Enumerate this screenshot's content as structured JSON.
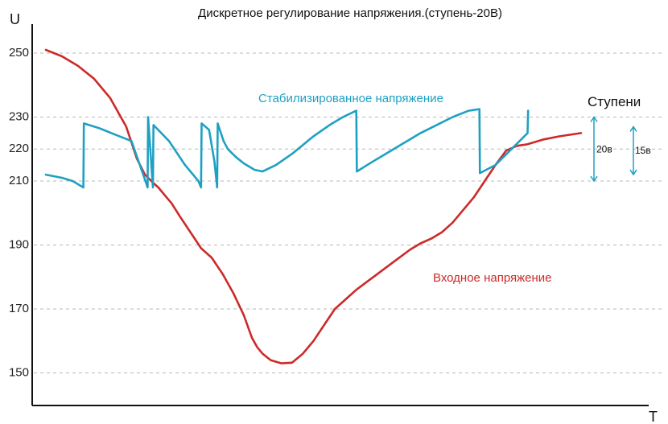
{
  "chart_data": {
    "type": "line",
    "title": "Дискретное регулирование напряжения.(ступень-20В)",
    "ylabel": "U",
    "xlabel": "T",
    "yticks": [
      150,
      170,
      190,
      210,
      220,
      230,
      250
    ],
    "ylim": [
      140,
      260
    ],
    "xlim": [
      0,
      100
    ],
    "grid": true,
    "colors": {
      "input": "#cc2a2a",
      "stabilized": "#1fa0c3",
      "axis": "#111111",
      "grid": "#b8b8b8"
    },
    "series": [
      {
        "name": "Входное напряжение",
        "key": "input",
        "x": [
          0,
          3,
          6,
          9,
          12,
          15,
          17,
          18.5,
          20,
          21,
          22,
          23.5,
          25,
          27,
          29,
          31,
          33,
          35,
          37,
          38.5,
          39.5,
          40.5,
          42,
          44,
          46,
          48,
          50,
          52,
          54,
          56,
          58,
          60,
          62,
          64,
          66,
          68,
          70,
          72,
          74,
          76,
          78,
          80,
          82,
          84,
          86,
          88,
          90,
          93,
          96,
          100
        ],
        "y": [
          251,
          249,
          246,
          242,
          236,
          227,
          217,
          212,
          209.5,
          208,
          206,
          203,
          199,
          194,
          189,
          186,
          181,
          175,
          168,
          161,
          158,
          156,
          154,
          153,
          153.2,
          156,
          160,
          165,
          170,
          173,
          176,
          178.5,
          181,
          183.5,
          186,
          188.5,
          190.5,
          192,
          194,
          197,
          201,
          205,
          210,
          215,
          219.5,
          221,
          221.5,
          223,
          224,
          225
        ]
      },
      {
        "name": "Стабилизированное напряжение",
        "key": "stabilized",
        "x": [
          0,
          3,
          5,
          7,
          7.1,
          10,
          13,
          16,
          18.5,
          19,
          19.1,
          20,
          20.1,
          23,
          26,
          28.5,
          29,
          29.1,
          30.5,
          31.5,
          32,
          32.1,
          32.6,
          33.2,
          34,
          35.5,
          37,
          39,
          40.5,
          43,
          46,
          50,
          53,
          55.5,
          58,
          58.1,
          61,
          64,
          67,
          70,
          73,
          76,
          79,
          81,
          81.1,
          84,
          87,
          90,
          90.1
        ],
        "y": [
          212,
          211,
          210,
          208,
          228,
          226.5,
          224.5,
          222.5,
          210.5,
          208,
          230,
          208,
          227.5,
          222.5,
          215,
          210,
          208,
          228,
          226,
          216,
          208,
          228,
          225.5,
          222.5,
          220,
          217.5,
          215.5,
          213.5,
          213,
          215,
          218.5,
          224,
          227.5,
          230,
          232,
          213,
          216,
          219,
          222,
          225,
          227.5,
          230,
          232,
          232.5,
          212.5,
          215,
          220,
          225,
          232
        ]
      }
    ],
    "annotations": {
      "input_label": "Входное напряжение",
      "stabilized_label": "Стабилизированное напряжение",
      "steps_title": "Ступени",
      "step_ranges": [
        {
          "label": "20в",
          "low": 210,
          "high": 230
        },
        {
          "label": "15в",
          "low": 212,
          "high": 227
        }
      ]
    }
  }
}
